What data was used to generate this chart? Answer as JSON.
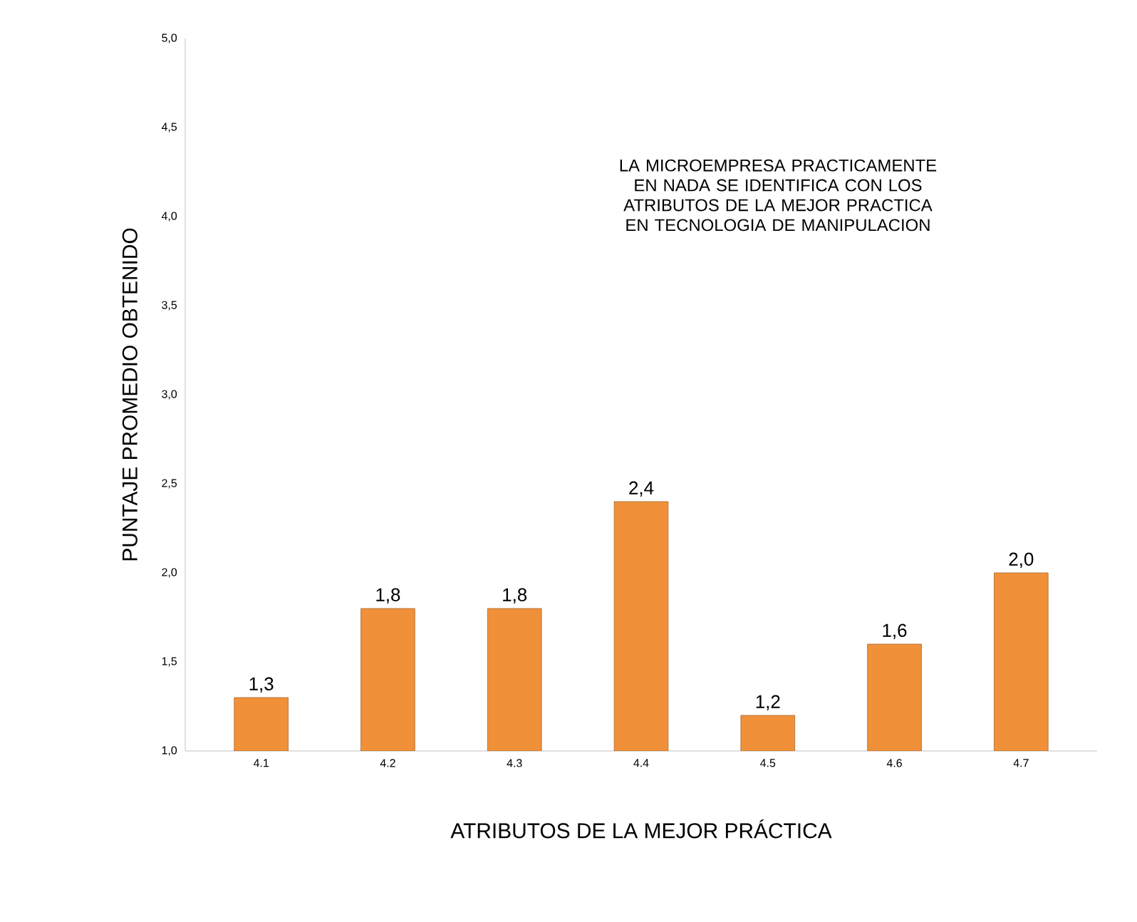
{
  "chart_data": {
    "type": "bar",
    "xlabel": "ATRIBUTOS DE LA MEJOR PRÁCTICA",
    "ylabel": "PUNTAJE   PROMEDIO   OBTENIDO",
    "categories": [
      "4.1",
      "4.2",
      "4.3",
      "4.4",
      "4.5",
      "4.6",
      "4.7"
    ],
    "values": [
      1.3,
      1.8,
      1.8,
      2.4,
      1.2,
      1.6,
      2.0
    ],
    "value_labels": [
      "1,3",
      "1,8",
      "1,8",
      "2,4",
      "1,2",
      "1,6",
      "2,0"
    ],
    "color": "#f0913a",
    "ylim": [
      1,
      5
    ],
    "yticks": [
      {
        "value": 1,
        "label": "1,0"
      },
      {
        "value": 1.5,
        "label": "1,5"
      },
      {
        "value": 2,
        "label": "2,0"
      },
      {
        "value": 2.5,
        "label": "2,5"
      },
      {
        "value": 3,
        "label": "3,0"
      },
      {
        "value": 3.5,
        "label": "3,5"
      },
      {
        "value": 4,
        "label": "4,0"
      },
      {
        "value": 4.5,
        "label": "4,5"
      },
      {
        "value": 5,
        "label": "5,0"
      }
    ],
    "grid": false,
    "annotations": [
      "LA MICROEMPRESA PRACTICAMENTE EN NADA SE IDENTIFICA CON LOS ATRIBUTOS DE LA MEJOR PRACTICA EN TECNOLOGIA DE MANIPULACION"
    ]
  }
}
